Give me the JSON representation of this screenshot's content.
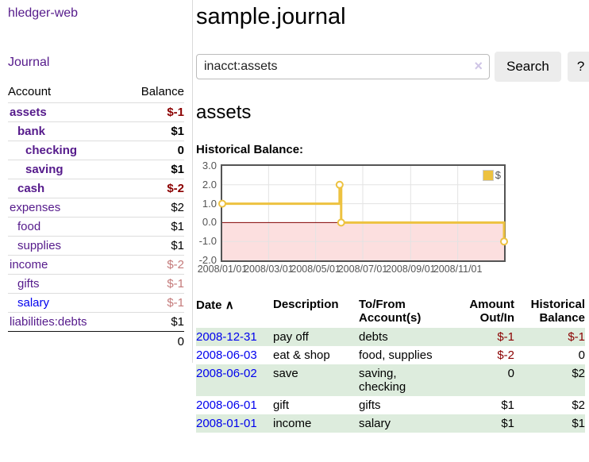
{
  "app": {
    "brand": "hledger-web"
  },
  "sidebar": {
    "nav_journal": "Journal",
    "accounts": {
      "headers": [
        "Account",
        "Balance"
      ],
      "rows": [
        {
          "name": "assets",
          "balance": "$-1",
          "depth": 1,
          "bold": true,
          "btype": "neg",
          "link": "purple"
        },
        {
          "name": "bank",
          "balance": "$1",
          "depth": 2,
          "bold": true,
          "btype": "norm",
          "link": "purple"
        },
        {
          "name": "checking",
          "balance": "0",
          "depth": 3,
          "bold": true,
          "btype": "norm",
          "link": "purple"
        },
        {
          "name": "saving",
          "balance": "$1",
          "depth": 3,
          "bold": true,
          "btype": "norm",
          "link": "purple"
        },
        {
          "name": "cash",
          "balance": "$-2",
          "depth": 2,
          "bold": true,
          "btype": "neg",
          "link": "purple"
        },
        {
          "name": "expenses",
          "balance": "$2",
          "depth": 1,
          "bold": false,
          "btype": "norm",
          "link": "purple"
        },
        {
          "name": "food",
          "balance": "$1",
          "depth": 2,
          "bold": false,
          "btype": "norm",
          "link": "purple"
        },
        {
          "name": "supplies",
          "balance": "$1",
          "depth": 2,
          "bold": false,
          "btype": "norm",
          "link": "purple"
        },
        {
          "name": "income",
          "balance": "$-2",
          "depth": 1,
          "bold": false,
          "btype": "negl",
          "link": "purple"
        },
        {
          "name": "gifts",
          "balance": "$-1",
          "depth": 2,
          "bold": false,
          "btype": "negl",
          "link": "purple"
        },
        {
          "name": "salary",
          "balance": "$-1",
          "depth": 2,
          "bold": false,
          "btype": "negl",
          "link": "blue"
        },
        {
          "name": "liabilities:debts",
          "balance": "$1",
          "depth": 1,
          "bold": false,
          "btype": "norm",
          "link": "purple"
        }
      ],
      "total": "0"
    }
  },
  "header": {
    "title": "sample.journal"
  },
  "search": {
    "query": "inacct:assets",
    "clear_icon": "×",
    "button": "Search",
    "help": "?"
  },
  "account": {
    "title": "assets",
    "chart_label": "Historical Balance:"
  },
  "chart_data": {
    "type": "line",
    "step": true,
    "title": "Historical Balance:",
    "series": [
      {
        "name": "$",
        "color": "#edc240",
        "points": [
          [
            "2008-01-01",
            1
          ],
          [
            "2008-06-01",
            2
          ],
          [
            "2008-06-03",
            0
          ],
          [
            "2008-12-31",
            -1
          ]
        ]
      }
    ],
    "xrange": [
      "2008-01-01",
      "2008-12-31"
    ],
    "ylim": [
      -2,
      3
    ],
    "yticks": [
      "3.0",
      "2.0",
      "1.0",
      "0.0",
      "-1.0",
      "-2.0"
    ],
    "xticks": [
      "2008/01/01",
      "2008/03/01",
      "2008/05/01",
      "2008/07/01",
      "2008/09/01",
      "2008/11/01"
    ],
    "legend_position": "top-right",
    "grid": true,
    "negative_region_color": "#fcdfdf",
    "zero_line_color": "#800000"
  },
  "register": {
    "headers": [
      "Date",
      "Description",
      "To/From Account(s)",
      "Amount Out/In",
      "Historical Balance"
    ],
    "sort_icon": "∧",
    "rows": [
      {
        "date": "2008-12-31",
        "description": "pay off",
        "accounts": "debts",
        "amount": "$-1",
        "amount_type": "neg",
        "balance": "$-1",
        "balance_type": "neg"
      },
      {
        "date": "2008-06-03",
        "description": "eat & shop",
        "accounts": "food, supplies",
        "amount": "$-2",
        "amount_type": "neg",
        "balance": "0",
        "balance_type": "norm"
      },
      {
        "date": "2008-06-02",
        "description": "save",
        "accounts": "saving, checking",
        "amount": "0",
        "amount_type": "norm",
        "balance": "$2",
        "balance_type": "norm"
      },
      {
        "date": "2008-06-01",
        "description": "gift",
        "accounts": "gifts",
        "amount": "$1",
        "amount_type": "norm",
        "balance": "$2",
        "balance_type": "norm"
      },
      {
        "date": "2008-01-01",
        "description": "income",
        "accounts": "salary",
        "amount": "$1",
        "amount_type": "norm",
        "balance": "$1",
        "balance_type": "norm"
      }
    ]
  }
}
